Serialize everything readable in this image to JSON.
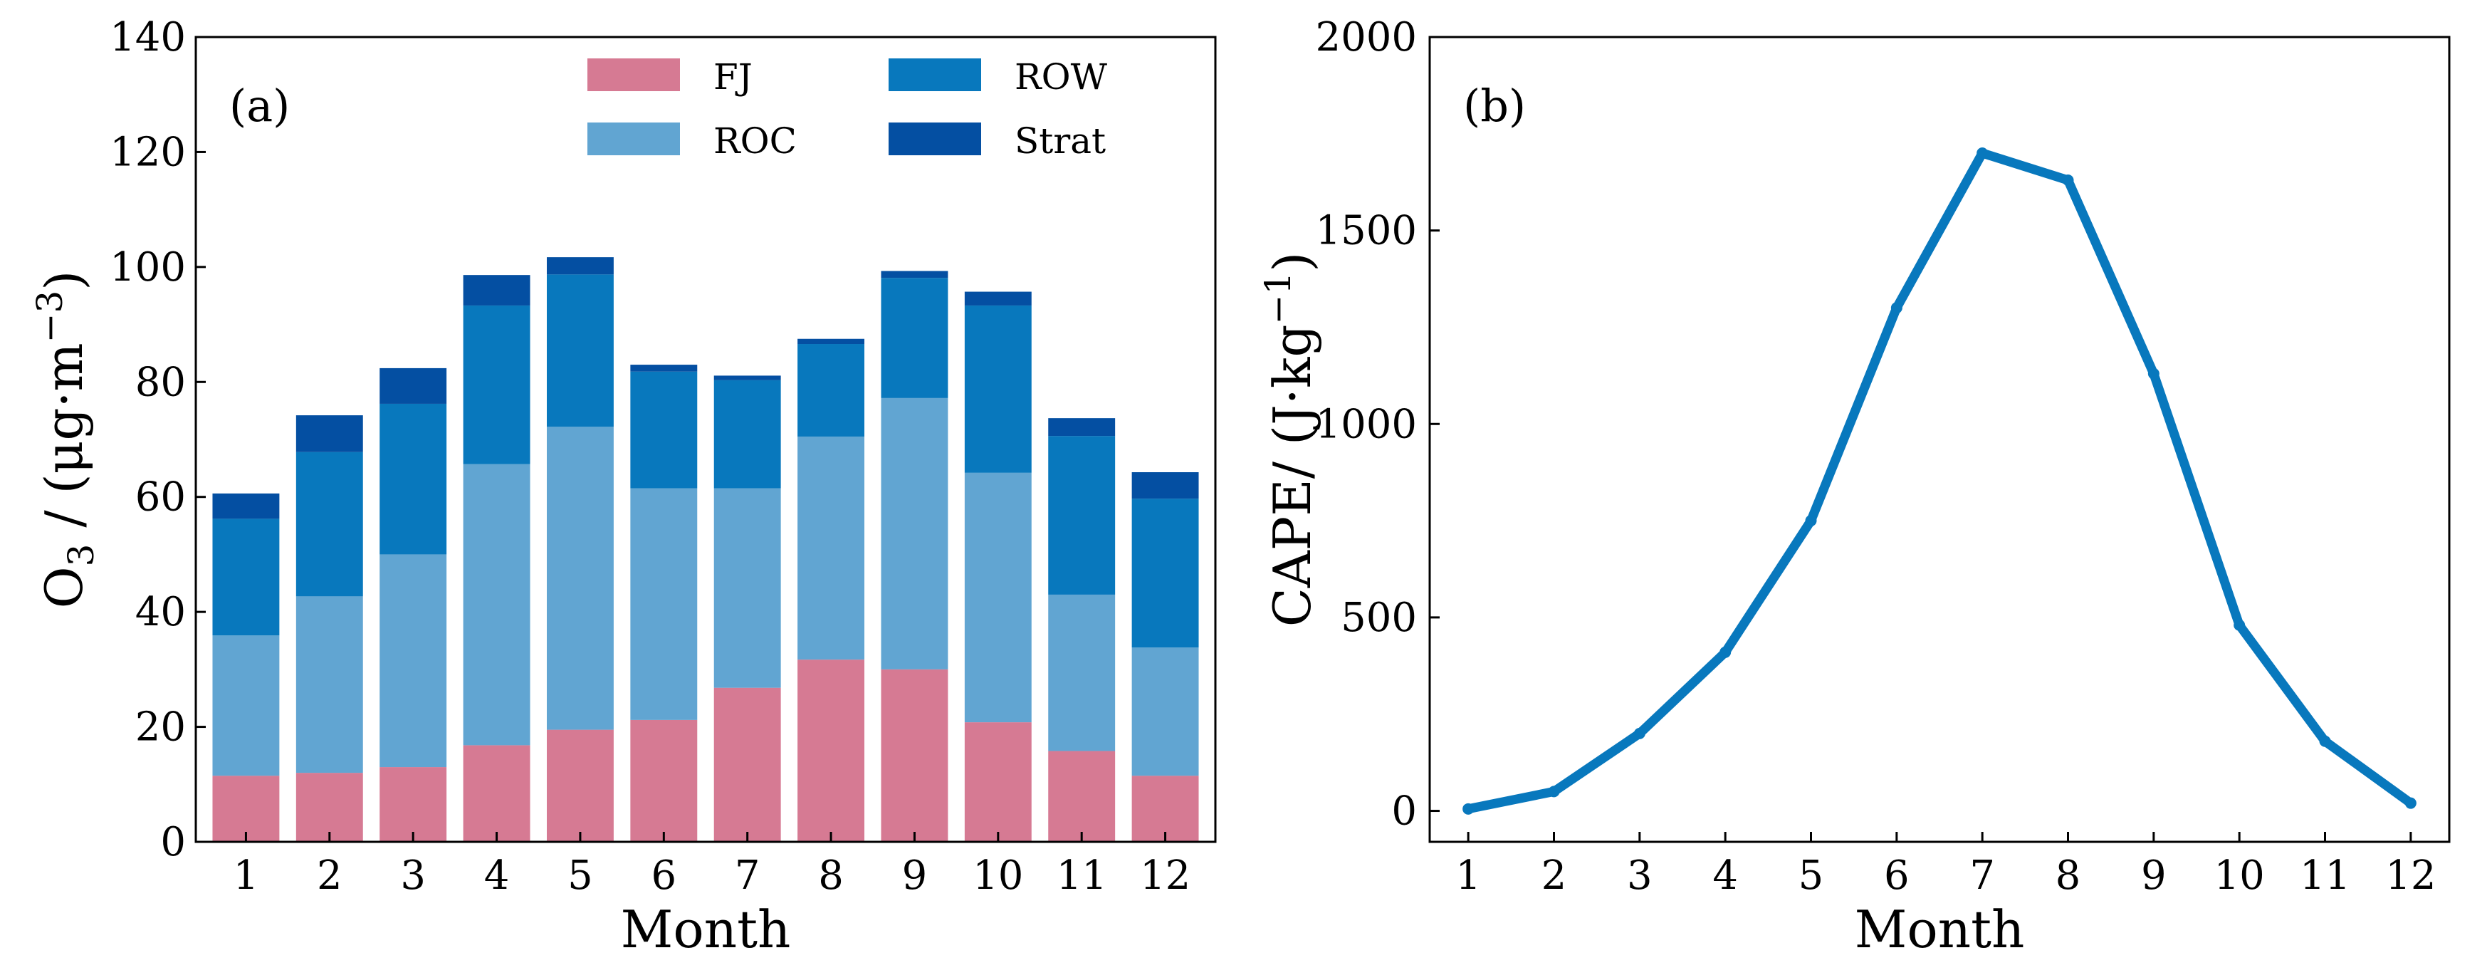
{
  "chart_data": [
    {
      "type": "bar",
      "stacked": true,
      "panel_label": "(a)",
      "xlabel": "Month",
      "ylabel_main": "O",
      "ylabel_sub": "3",
      "ylabel_rest": " / (μg·m",
      "ylabel_sup": "−3",
      "ylabel_close": ")",
      "ylim": [
        0,
        140
      ],
      "yticks": [
        0,
        20,
        40,
        60,
        80,
        100,
        120,
        140
      ],
      "categories": [
        "1",
        "2",
        "3",
        "4",
        "5",
        "6",
        "7",
        "8",
        "9",
        "10",
        "11",
        "12"
      ],
      "series": [
        {
          "name": "FJ",
          "color": "#d67a93",
          "values": [
            11.5,
            12,
            13,
            16.8,
            19.5,
            21.2,
            26.8,
            31.7,
            30,
            20.8,
            15.8,
            11.5
          ]
        },
        {
          "name": "ROC",
          "color": "#61a5d2",
          "values": [
            24.4,
            30.7,
            37,
            48.9,
            52.7,
            40.3,
            34.7,
            38.8,
            47.2,
            43.4,
            27.2,
            22.3
          ]
        },
        {
          "name": "ROW",
          "color": "#0878bd",
          "values": [
            20.3,
            25.1,
            26.2,
            27.6,
            26.5,
            20.3,
            18.8,
            16.1,
            20.9,
            29.1,
            27.6,
            25.9
          ]
        },
        {
          "name": "Strat",
          "color": "#044fa2",
          "values": [
            4.4,
            6.4,
            6.2,
            5.3,
            3,
            1.2,
            0.8,
            0.9,
            1.2,
            2.4,
            3.1,
            4.6
          ]
        }
      ],
      "legend_location": "top-right"
    },
    {
      "type": "line",
      "panel_label": "(b)",
      "xlabel": "Month",
      "ylabel_main": "CAPE/ (J·kg",
      "ylabel_sup": "−1",
      "ylabel_close": ")",
      "ylim": [
        -80,
        2000
      ],
      "yticks": [
        0,
        500,
        1000,
        1500,
        2000
      ],
      "x": [
        1,
        2,
        3,
        4,
        5,
        6,
        7,
        8,
        9,
        10,
        11,
        12
      ],
      "xtick_labels": [
        "1",
        "2",
        "3",
        "4",
        "5",
        "6",
        "7",
        "8",
        "9",
        "10",
        "11",
        "12"
      ],
      "series": [
        {
          "name": "CAPE",
          "color": "#0878bd",
          "values": [
            5,
            50,
            200,
            410,
            750,
            1300,
            1700,
            1630,
            1130,
            480,
            180,
            20
          ]
        }
      ]
    }
  ]
}
